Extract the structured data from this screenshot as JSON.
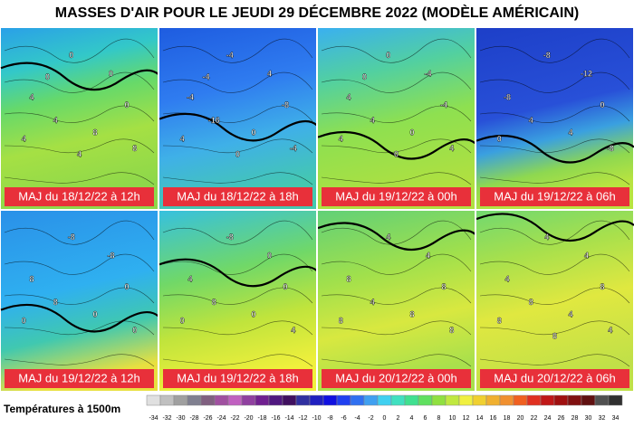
{
  "title": "MASSES D'AIR POUR LE JEUDI 29 DÉCEMBRE 2022 (MODÈLE AMÉRICAIN)",
  "panels": [
    {
      "label": "MAJ du 18/12/22 à 12h",
      "contours": [
        "0",
        "0",
        "4",
        "0",
        "4",
        "8",
        "4",
        "8",
        "4",
        "0"
      ]
    },
    {
      "label": "MAJ du 18/12/22 à 18h",
      "contours": [
        "-4",
        "4",
        "-4",
        "-8",
        "-16",
        "0",
        "4",
        "-4",
        "0",
        "-4"
      ]
    },
    {
      "label": "MAJ du 19/12/22 à 00h",
      "contours": [
        "0",
        "-4",
        "4",
        "-4",
        "4",
        "0",
        "4",
        "4",
        "0",
        "0"
      ]
    },
    {
      "label": "MAJ du 19/12/22 à 06h",
      "contours": [
        "-8",
        "-12",
        "-8",
        "0",
        "4",
        "4",
        "0",
        "-8"
      ]
    },
    {
      "label": "MAJ du 19/12/22 à 12h",
      "contours": [
        "-8",
        "-8",
        "8",
        "0",
        "8",
        "0",
        "0",
        "0"
      ]
    },
    {
      "label": "MAJ du 19/12/22 à 18h",
      "contours": [
        "-8",
        "0",
        "4",
        "0",
        "8",
        "0",
        "0",
        "4"
      ]
    },
    {
      "label": "MAJ du 20/12/22 à 00h",
      "contours": [
        "4",
        "4",
        "8",
        "8",
        "4",
        "8",
        "8",
        "8"
      ]
    },
    {
      "label": "MAJ du 20/12/22 à 06h",
      "contours": [
        "4",
        "4",
        "4",
        "8",
        "8",
        "4",
        "8",
        "4",
        "8"
      ]
    }
  ],
  "legend": {
    "title": "Températures à 1500m",
    "ticks": [
      -34,
      -32,
      -30,
      -28,
      -26,
      -24,
      -22,
      -20,
      -18,
      -16,
      -14,
      -12,
      -10,
      -8,
      -6,
      -4,
      -2,
      0,
      2,
      4,
      6,
      8,
      10,
      12,
      14,
      16,
      18,
      20,
      22,
      24,
      26,
      28,
      30,
      32,
      34
    ],
    "colors": [
      "#e0e0e0",
      "#c0c0c0",
      "#a0a0a0",
      "#808090",
      "#806080",
      "#a050a0",
      "#c060c0",
      "#9040a0",
      "#702090",
      "#501880",
      "#401060",
      "#3030a0",
      "#2020c0",
      "#1010e0",
      "#2040f0",
      "#3070f0",
      "#40a0f0",
      "#40d0f0",
      "#40e0c0",
      "#40e090",
      "#60e060",
      "#90e040",
      "#c0e840",
      "#f0f040",
      "#f0d030",
      "#f0b030",
      "#f09030",
      "#f06020",
      "#e03020",
      "#c01818",
      "#a01010",
      "#801010",
      "#601010",
      "#505050",
      "#303030"
    ]
  }
}
